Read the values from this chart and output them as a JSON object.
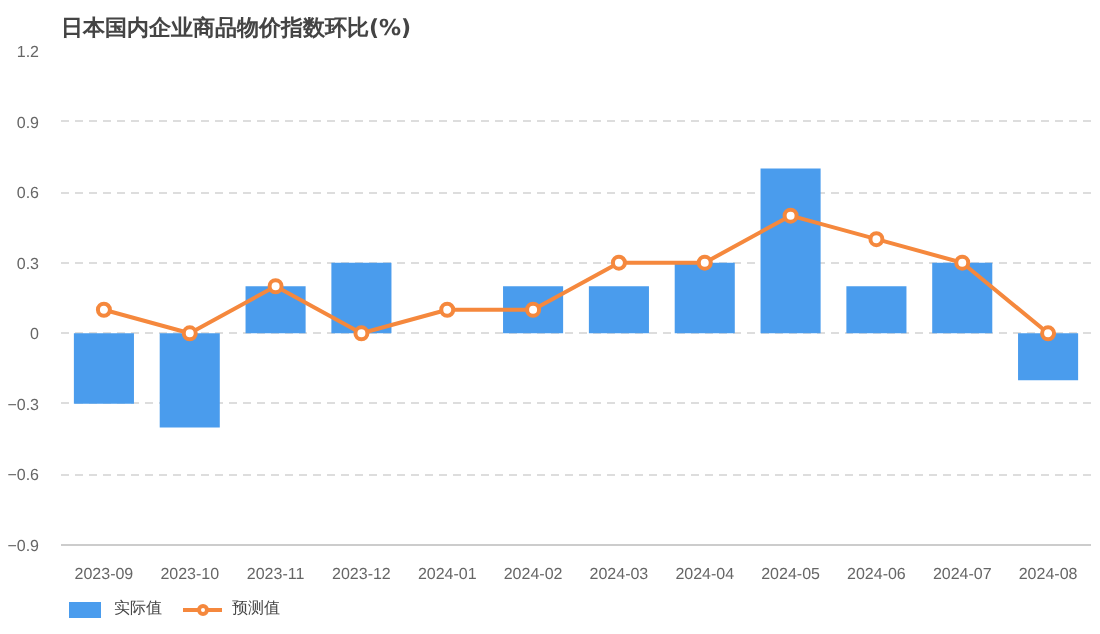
{
  "chart_data": {
    "type": "bar",
    "title": "日本国内企业商品物价指数环比(%)",
    "categories": [
      "2023-09",
      "2023-10",
      "2023-11",
      "2023-12",
      "2024-01",
      "2024-02",
      "2024-03",
      "2024-04",
      "2024-05",
      "2024-06",
      "2024-07",
      "2024-08"
    ],
    "series": [
      {
        "name": "实际值",
        "color": "#4a9ced",
        "values": [
          -0.3,
          -0.4,
          0.2,
          0.3,
          0,
          0.2,
          0.2,
          0.3,
          0.7,
          0.2,
          0.3,
          -0.2
        ]
      },
      {
        "name": "预测值",
        "type": "line",
        "color": "#f5883d",
        "values": [
          0.1,
          0,
          0.2,
          0,
          0.1,
          0.1,
          0.3,
          0.3,
          0.5,
          0.4,
          0.3,
          0
        ]
      }
    ],
    "ylim": [
      -0.9,
      1.2
    ],
    "yticks": [
      -0.9,
      -0.6,
      -0.3,
      0,
      0.3,
      0.6,
      0.9,
      1.2
    ],
    "grid": "y",
    "legend": "bottom left",
    "marker": "circle",
    "line_style": "solid"
  }
}
